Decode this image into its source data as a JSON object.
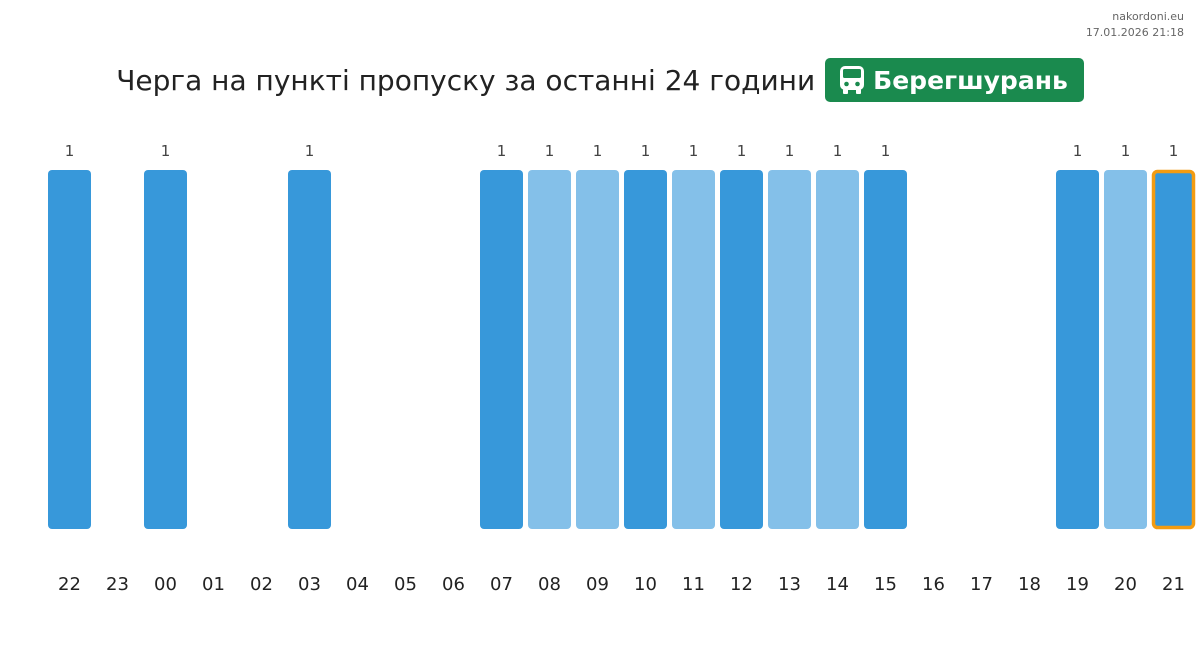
{
  "site": "nakordoni.eu",
  "timestamp": "17.01.2026 21:18",
  "title": "Черга на пункті пропуску за останні 24 години",
  "checkpoint": {
    "name": "Берегшурань",
    "icon": "bus-icon",
    "color": "#1a8a4e"
  },
  "colors": {
    "bar_dark": "#3798da",
    "bar_light": "#84c0e9",
    "highlight_border": "#f39c12"
  },
  "chart_data": {
    "type": "bar",
    "categories": [
      "22",
      "23",
      "00",
      "01",
      "02",
      "03",
      "04",
      "05",
      "06",
      "07",
      "08",
      "09",
      "10",
      "11",
      "12",
      "13",
      "14",
      "15",
      "16",
      "17",
      "18",
      "19",
      "20",
      "21"
    ],
    "values": [
      1,
      0,
      1,
      0,
      0,
      1,
      0,
      0,
      0,
      1,
      1,
      1,
      1,
      1,
      1,
      1,
      1,
      1,
      0,
      0,
      0,
      1,
      1,
      1
    ],
    "shades": [
      "dark",
      null,
      "dark",
      null,
      null,
      "dark",
      null,
      null,
      null,
      "dark",
      "light",
      "light",
      "dark",
      "light",
      "dark",
      "light",
      "light",
      "dark",
      null,
      null,
      null,
      "dark",
      "light",
      "dark"
    ],
    "highlight": "21",
    "data_labels": [
      "1",
      "",
      "1",
      "",
      "",
      "1",
      "",
      "",
      "",
      "1",
      "1",
      "1",
      "1",
      "1",
      "1",
      "1",
      "1",
      "1",
      "",
      "",
      "",
      "1",
      "1",
      "1"
    ],
    "ylim": [
      0,
      1
    ],
    "grid": false,
    "legend": false
  }
}
